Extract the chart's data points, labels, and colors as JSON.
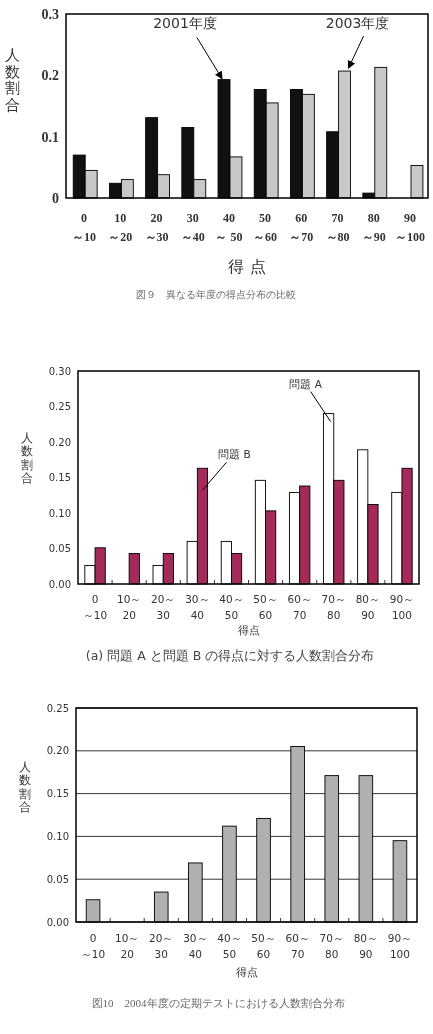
{
  "chart_data": [
    {
      "type": "bar",
      "categories": [
        "0\n～10",
        "10\n～20",
        "20\n～30",
        "30\n～40",
        "40\n～ 50",
        "50\n～60",
        "60\n～70",
        "70\n～80",
        "80\n～90",
        "90\n～100"
      ],
      "series": [
        {
          "color": "#111111",
          "values": [
            0.07,
            0.024,
            0.131,
            0.115,
            0.193,
            0.177,
            0.177,
            0.108,
            0.008,
            0
          ]
        },
        {
          "color": "#c8c8c8",
          "values": [
            0.045,
            0.03,
            0.038,
            0.03,
            0.067,
            0.155,
            0.169,
            0.207,
            0.213,
            0.053
          ]
        }
      ],
      "ylim": [
        0,
        0.3
      ],
      "yticks": [
        0,
        0.1,
        0.2,
        0.3
      ],
      "xlabel": "得 点",
      "ylabel": "人数割合",
      "annotations": [
        {
          "text": "2001年度",
          "x": "40\n～ 50",
          "y": 0.193
        },
        {
          "text": "2003年度",
          "x": "70\n～80",
          "y": 0.207
        },
        "図９　異なる年度の得点分布の比較"
      ]
    },
    {
      "type": "bar",
      "categories": [
        "0\n～10",
        "10～\n20",
        "20～\n30",
        "30～\n40",
        "40～\n50",
        "50～\n60",
        "60～\n70",
        "70～\n80",
        "80～\n90",
        "90～\n100"
      ],
      "series": [
        {
          "color": "#ffffff",
          "values": [
            0.026,
            0,
            0.026,
            0.06,
            0.06,
            0.146,
            0.129,
            0.24,
            0.189,
            0.129
          ]
        },
        {
          "color": "#a52a5a",
          "values": [
            0.051,
            0.043,
            0.043,
            0.163,
            0.043,
            0.103,
            0.138,
            0.146,
            0.112,
            0.163
          ]
        }
      ],
      "ylim": [
        0,
        0.3
      ],
      "yticks": [
        {
          "value": 0,
          "label": "0.00"
        },
        {
          "value": 0.05,
          "label": "0.05"
        },
        {
          "value": 0.1,
          "label": "0.10"
        },
        {
          "value": 0.15,
          "label": "0.15"
        },
        {
          "value": 0.2,
          "label": "0.20"
        },
        {
          "value": 0.25,
          "label": "0.25"
        },
        {
          "value": 0.3,
          "label": "0.30"
        }
      ],
      "xlabel": "得点",
      "ylabel": "人数割合",
      "annotations": [
        {
          "text": "問題 A",
          "x": "70～\n80",
          "y": 0.24
        },
        {
          "text": "問題 B",
          "x": "30～\n40",
          "y": 0.163
        },
        "(a) 問題 A と問題 B の得点に対する人数割合分布"
      ]
    },
    {
      "type": "bar",
      "categories": [
        "0\n～10",
        "10～\n20",
        "20～\n30",
        "30～\n40",
        "40～\n50",
        "50～\n60",
        "60～\n70",
        "70～\n80",
        "80～\n90",
        "90～\n100"
      ],
      "series": [
        {
          "color": "#b0b0b0",
          "values": [
            0.026,
            0,
            0.035,
            0.069,
            0.112,
            0.121,
            0.205,
            0.171,
            0.171,
            0.095
          ]
        }
      ],
      "ylim": [
        0,
        0.25
      ],
      "yticks": [
        {
          "value": 0,
          "label": "0.00"
        },
        {
          "value": 0.05,
          "label": "0.05"
        },
        {
          "value": 0.1,
          "label": "0.10"
        },
        {
          "value": 0.15,
          "label": "0.15"
        },
        {
          "value": 0.2,
          "label": "0.20"
        },
        {
          "value": 0.25,
          "label": "0.25"
        }
      ],
      "grid": "y",
      "xlabel": "得点",
      "ylabel": "人数割合",
      "annotations": [
        "図10　2004年度の定期テストにおける人数割合分布"
      ]
    }
  ]
}
